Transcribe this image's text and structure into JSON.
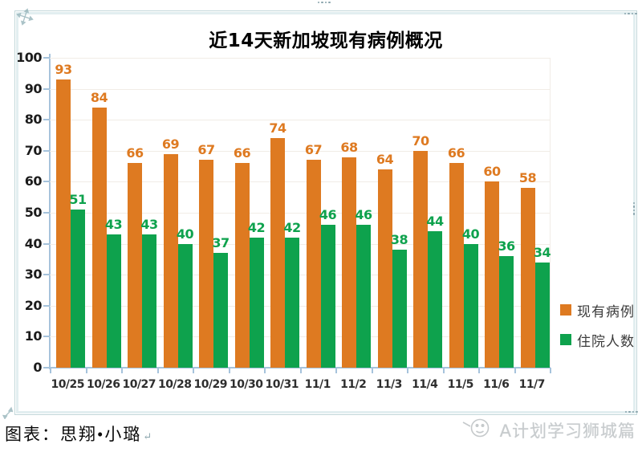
{
  "chart_data": {
    "type": "bar",
    "title": "近14天新加坡现有病例概况",
    "categories": [
      "10/25",
      "10/26",
      "10/27",
      "10/28",
      "10/29",
      "10/30",
      "10/31",
      "11/1",
      "11/2",
      "11/3",
      "11/4",
      "11/5",
      "11/6",
      "11/7"
    ],
    "series": [
      {
        "key": "existing-cases",
        "name": "现有病例",
        "color": "#DE7A21",
        "values": [
          93,
          84,
          66,
          69,
          67,
          66,
          74,
          67,
          68,
          64,
          70,
          66,
          60,
          58
        ]
      },
      {
        "key": "hospitalized",
        "name": "住院人数",
        "color": "#0EA24D",
        "values": [
          51,
          43,
          43,
          40,
          37,
          42,
          42,
          46,
          46,
          38,
          44,
          40,
          36,
          34
        ]
      }
    ],
    "ylim": [
      0,
      100
    ],
    "ytick_step": 10,
    "yticks": [
      100,
      90,
      80,
      70,
      60,
      50,
      40,
      30,
      20,
      10,
      0
    ],
    "grid": true,
    "legend_position": "right-middle"
  },
  "caption": {
    "label": "图表：思翔•小璐",
    "return_mark": "↵"
  },
  "watermark": {
    "text": "A计划学习狮城篇"
  },
  "colors": {
    "series_cases": "#DE7A21",
    "series_hospitalized": "#0EA24D",
    "axis": "#A6C3DC",
    "gridline": "#F1ECE6",
    "frame_border": "#C2D7D9",
    "watermark": "#C7CBCD",
    "handle": "#8AA4AD"
  }
}
